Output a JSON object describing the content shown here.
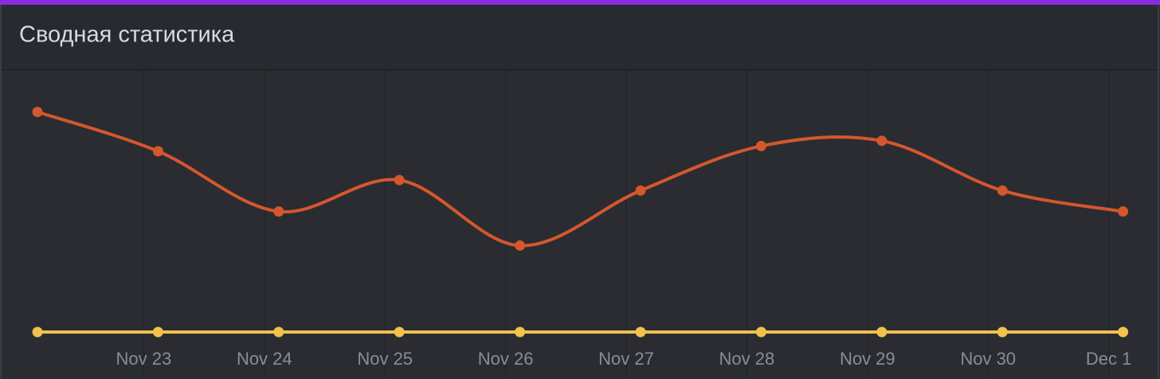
{
  "chart_data": {
    "type": "line",
    "title": "Сводная статистика",
    "categories": [
      null,
      "Nov 23",
      "Nov 24",
      "Nov 25",
      "Nov 26",
      "Nov 27",
      "Nov 28",
      "Nov 29",
      "Nov 30",
      "Dec 1"
    ],
    "series": [
      {
        "color": "#d4572d",
        "values": [
          84,
          69,
          46,
          58,
          33,
          54,
          71,
          73,
          54,
          46
        ]
      },
      {
        "color": "#f2c14e",
        "values": [
          0,
          0,
          0,
          0,
          0,
          0,
          0,
          0,
          0,
          0
        ]
      }
    ],
    "ylim": [
      0,
      100
    ],
    "grid": true
  }
}
